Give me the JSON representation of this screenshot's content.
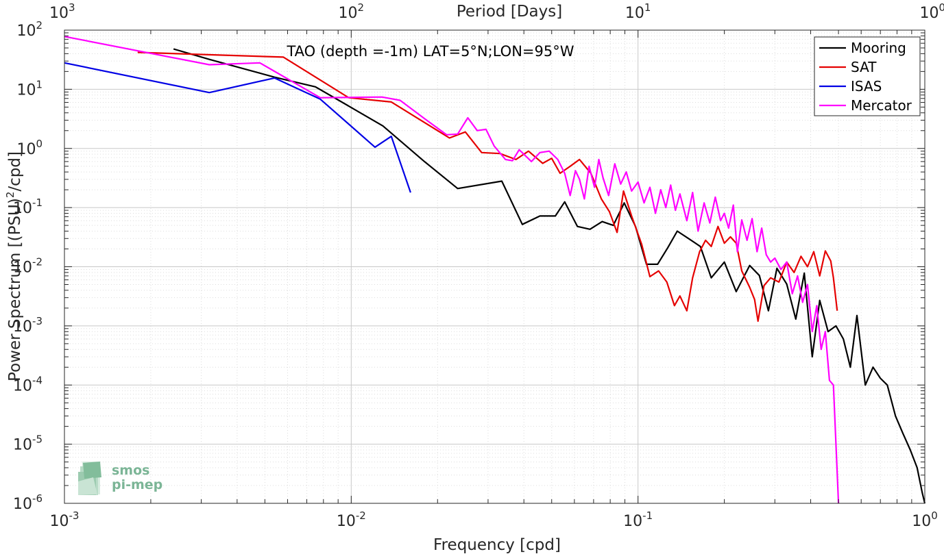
{
  "chart_data": {
    "type": "line",
    "title": "TAO (depth =-1m) LAT=5°N;LON=95°W",
    "xlabel": "Frequency [cpd]",
    "ylabel": "Power Spectrum [(PSU)²/cpd]",
    "ylabel_parts": {
      "main": "Power Spectrum [(PSU)",
      "sup": "2",
      "tail": "/cpd]"
    },
    "top_xlabel": "Period [Days]",
    "x_scale": "log",
    "y_scale": "log",
    "xlim": [
      0.001,
      1
    ],
    "ylim": [
      1e-06,
      100
    ],
    "grid": true,
    "minor_grid": true,
    "legend_position": "top-right",
    "x_ticks": [
      {
        "value": 0.001,
        "base": "10",
        "exp": "-3"
      },
      {
        "value": 0.01,
        "base": "10",
        "exp": "-2"
      },
      {
        "value": 0.1,
        "base": "10",
        "exp": "-1"
      },
      {
        "value": 1,
        "base": "10",
        "exp": "0"
      }
    ],
    "top_ticks": [
      {
        "value": 0.001,
        "base": "10",
        "exp": "3"
      },
      {
        "value": 0.01,
        "base": "10",
        "exp": "2"
      },
      {
        "value": 0.1,
        "base": "10",
        "exp": "1"
      },
      {
        "value": 1,
        "base": "10",
        "exp": "0"
      }
    ],
    "y_ticks": [
      {
        "value": 100,
        "base": "10",
        "exp": "2"
      },
      {
        "value": 10,
        "base": "10",
        "exp": "1"
      },
      {
        "value": 1,
        "base": "10",
        "exp": "0"
      },
      {
        "value": 0.1,
        "base": "10",
        "exp": "-1"
      },
      {
        "value": 0.01,
        "base": "10",
        "exp": "-2"
      },
      {
        "value": 0.001,
        "base": "10",
        "exp": "-3"
      },
      {
        "value": 0.0001,
        "base": "10",
        "exp": "-4"
      },
      {
        "value": 1e-05,
        "base": "10",
        "exp": "-5"
      },
      {
        "value": 1e-06,
        "base": "10",
        "exp": "-6"
      }
    ],
    "series": [
      {
        "name": "Mooring",
        "color": "#000000",
        "points": [
          [
            0.0024,
            48
          ],
          [
            0.0032,
            32
          ],
          [
            0.0054,
            16
          ],
          [
            0.0075,
            11
          ],
          [
            0.0098,
            5.2
          ],
          [
            0.0129,
            2.4
          ],
          [
            0.018,
            0.6
          ],
          [
            0.0235,
            0.21
          ],
          [
            0.0335,
            0.28
          ],
          [
            0.0395,
            0.052
          ],
          [
            0.0455,
            0.072
          ],
          [
            0.0515,
            0.072
          ],
          [
            0.0555,
            0.125
          ],
          [
            0.0615,
            0.048
          ],
          [
            0.068,
            0.043
          ],
          [
            0.075,
            0.058
          ],
          [
            0.082,
            0.05
          ],
          [
            0.0895,
            0.12
          ],
          [
            0.098,
            0.048
          ],
          [
            0.107,
            0.011
          ],
          [
            0.117,
            0.011
          ],
          [
            0.127,
            0.021
          ],
          [
            0.137,
            0.04
          ],
          [
            0.15,
            0.03
          ],
          [
            0.165,
            0.022
          ],
          [
            0.18,
            0.0065
          ],
          [
            0.2,
            0.012
          ],
          [
            0.22,
            0.0038
          ],
          [
            0.245,
            0.0105
          ],
          [
            0.265,
            0.0071
          ],
          [
            0.285,
            0.0018
          ],
          [
            0.305,
            0.0094
          ],
          [
            0.33,
            0.0051
          ],
          [
            0.355,
            0.0013
          ],
          [
            0.38,
            0.0078
          ],
          [
            0.405,
            0.0003
          ],
          [
            0.43,
            0.0027
          ],
          [
            0.46,
            0.0008
          ],
          [
            0.49,
            0.001
          ],
          [
            0.52,
            0.0006
          ],
          [
            0.55,
            0.0002
          ],
          [
            0.58,
            0.0015
          ],
          [
            0.62,
            0.0001
          ],
          [
            0.66,
            0.0002
          ],
          [
            0.7,
            0.00013
          ],
          [
            0.74,
            0.0001
          ],
          [
            0.79,
            3e-05
          ],
          [
            0.84,
            1.5e-05
          ],
          [
            0.89,
            8e-06
          ],
          [
            0.94,
            4e-06
          ],
          [
            0.98,
            1.5e-06
          ],
          [
            1.0,
            1e-06
          ]
        ]
      },
      {
        "name": "SAT",
        "color": "#e50000",
        "points": [
          [
            0.0018,
            42
          ],
          [
            0.0058,
            35
          ],
          [
            0.0098,
            7.2
          ],
          [
            0.0138,
            6.1
          ],
          [
            0.022,
            1.5
          ],
          [
            0.025,
            1.9
          ],
          [
            0.0285,
            0.85
          ],
          [
            0.033,
            0.82
          ],
          [
            0.0375,
            0.65
          ],
          [
            0.0415,
            0.9
          ],
          [
            0.0465,
            0.56
          ],
          [
            0.05,
            0.68
          ],
          [
            0.0535,
            0.38
          ],
          [
            0.058,
            0.5
          ],
          [
            0.0625,
            0.65
          ],
          [
            0.0685,
            0.38
          ],
          [
            0.0745,
            0.14
          ],
          [
            0.0795,
            0.085
          ],
          [
            0.0845,
            0.038
          ],
          [
            0.089,
            0.19
          ],
          [
            0.095,
            0.072
          ],
          [
            0.103,
            0.024
          ],
          [
            0.11,
            0.0068
          ],
          [
            0.118,
            0.0085
          ],
          [
            0.126,
            0.0055
          ],
          [
            0.134,
            0.0022
          ],
          [
            0.14,
            0.0032
          ],
          [
            0.148,
            0.0018
          ],
          [
            0.155,
            0.0065
          ],
          [
            0.164,
            0.018
          ],
          [
            0.172,
            0.028
          ],
          [
            0.18,
            0.022
          ],
          [
            0.19,
            0.048
          ],
          [
            0.2,
            0.025
          ],
          [
            0.21,
            0.032
          ],
          [
            0.22,
            0.025
          ],
          [
            0.23,
            0.0085
          ],
          [
            0.245,
            0.0045
          ],
          [
            0.255,
            0.0028
          ],
          [
            0.262,
            0.0012
          ],
          [
            0.275,
            0.0048
          ],
          [
            0.29,
            0.0065
          ],
          [
            0.31,
            0.0055
          ],
          [
            0.33,
            0.012
          ],
          [
            0.35,
            0.008
          ],
          [
            0.37,
            0.015
          ],
          [
            0.39,
            0.01
          ],
          [
            0.41,
            0.018
          ],
          [
            0.43,
            0.007
          ],
          [
            0.45,
            0.0185
          ],
          [
            0.47,
            0.0125
          ],
          [
            0.48,
            0.0065
          ],
          [
            0.495,
            0.0018
          ]
        ]
      },
      {
        "name": "ISAS",
        "color": "#0000e5",
        "points": [
          [
            0.001,
            28
          ],
          [
            0.0032,
            8.8
          ],
          [
            0.0054,
            15.5
          ],
          [
            0.0078,
            6.8
          ],
          [
            0.0121,
            1.05
          ],
          [
            0.0138,
            1.6
          ],
          [
            0.0161,
            0.18
          ]
        ]
      },
      {
        "name": "Mercator",
        "color": "#ff00ff",
        "points": [
          [
            0.001,
            78
          ],
          [
            0.0032,
            26
          ],
          [
            0.0048,
            28
          ],
          [
            0.0078,
            7.2
          ],
          [
            0.0128,
            7.4
          ],
          [
            0.0148,
            6.5
          ],
          [
            0.018,
            3.2
          ],
          [
            0.0215,
            1.7
          ],
          [
            0.0235,
            1.75
          ],
          [
            0.0255,
            3.3
          ],
          [
            0.0275,
            2.0
          ],
          [
            0.0295,
            2.1
          ],
          [
            0.0315,
            1.1
          ],
          [
            0.0345,
            0.65
          ],
          [
            0.0365,
            0.62
          ],
          [
            0.0385,
            0.95
          ],
          [
            0.0405,
            0.75
          ],
          [
            0.0425,
            0.6
          ],
          [
            0.0455,
            0.85
          ],
          [
            0.049,
            0.9
          ],
          [
            0.0525,
            0.65
          ],
          [
            0.0555,
            0.38
          ],
          [
            0.058,
            0.16
          ],
          [
            0.0605,
            0.42
          ],
          [
            0.0625,
            0.3
          ],
          [
            0.065,
            0.14
          ],
          [
            0.0675,
            0.5
          ],
          [
            0.0705,
            0.22
          ],
          [
            0.073,
            0.65
          ],
          [
            0.0755,
            0.32
          ],
          [
            0.079,
            0.16
          ],
          [
            0.083,
            0.55
          ],
          [
            0.087,
            0.25
          ],
          [
            0.091,
            0.4
          ],
          [
            0.095,
            0.19
          ],
          [
            0.1,
            0.27
          ],
          [
            0.105,
            0.12
          ],
          [
            0.11,
            0.22
          ],
          [
            0.115,
            0.08
          ],
          [
            0.12,
            0.2
          ],
          [
            0.125,
            0.1
          ],
          [
            0.13,
            0.24
          ],
          [
            0.135,
            0.09
          ],
          [
            0.14,
            0.17
          ],
          [
            0.148,
            0.06
          ],
          [
            0.155,
            0.18
          ],
          [
            0.162,
            0.04
          ],
          [
            0.17,
            0.12
          ],
          [
            0.178,
            0.055
          ],
          [
            0.186,
            0.15
          ],
          [
            0.194,
            0.06
          ],
          [
            0.2,
            0.08
          ],
          [
            0.207,
            0.045
          ],
          [
            0.215,
            0.11
          ],
          [
            0.222,
            0.018
          ],
          [
            0.23,
            0.062
          ],
          [
            0.24,
            0.028
          ],
          [
            0.25,
            0.065
          ],
          [
            0.26,
            0.018
          ],
          [
            0.27,
            0.045
          ],
          [
            0.28,
            0.016
          ],
          [
            0.29,
            0.012
          ],
          [
            0.3,
            0.014
          ],
          [
            0.315,
            0.009
          ],
          [
            0.33,
            0.012
          ],
          [
            0.345,
            0.0035
          ],
          [
            0.36,
            0.007
          ],
          [
            0.375,
            0.0025
          ],
          [
            0.39,
            0.005
          ],
          [
            0.405,
            0.0008
          ],
          [
            0.42,
            0.0022
          ],
          [
            0.435,
            0.0004
          ],
          [
            0.45,
            0.0008
          ],
          [
            0.465,
            0.00012
          ],
          [
            0.48,
            0.0001
          ],
          [
            0.49,
            1e-05
          ],
          [
            0.5,
            1e-06
          ]
        ]
      }
    ]
  },
  "watermark": {
    "line1": "smos",
    "line2": "pi-mep",
    "color": "#7bb596"
  }
}
